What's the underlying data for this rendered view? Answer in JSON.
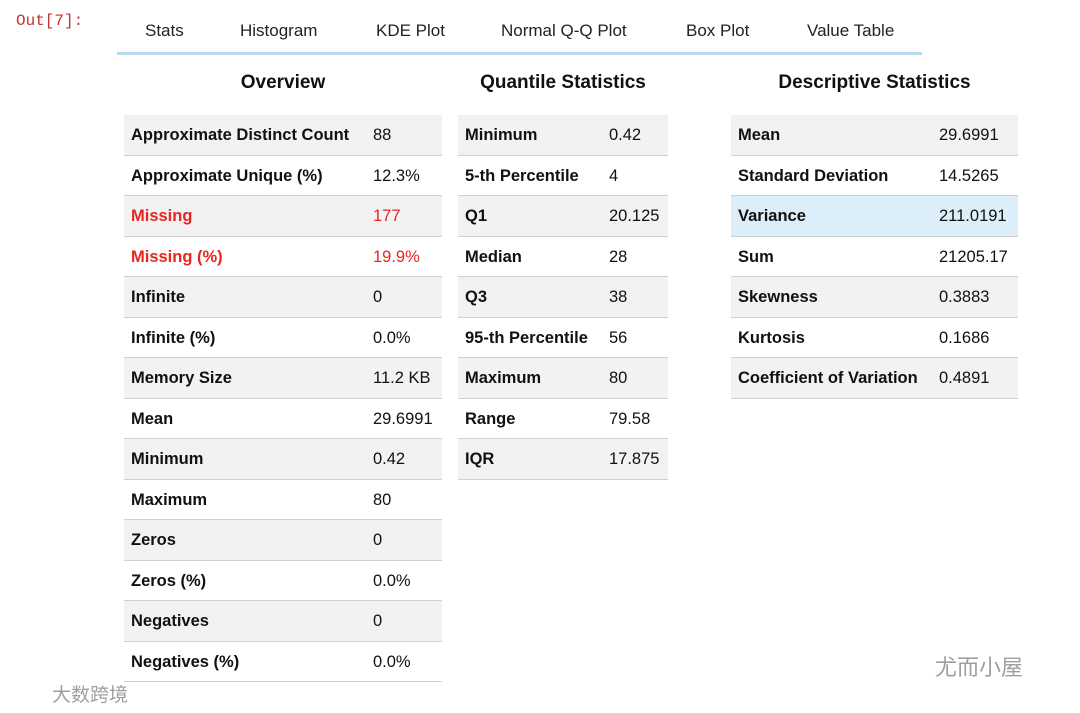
{
  "prompt": "Out[7]:",
  "tabs": [
    "Stats",
    "Histogram",
    "KDE Plot",
    "Normal Q-Q Plot",
    "Box Plot",
    "Value Table"
  ],
  "tables": [
    {
      "title": "Overview",
      "rows": [
        [
          "Approximate Distinct Count",
          "88"
        ],
        [
          "Approximate Unique (%)",
          "12.3%"
        ],
        [
          "Missing",
          "177"
        ],
        [
          "Missing (%)",
          "19.9%"
        ],
        [
          "Infinite",
          "0"
        ],
        [
          "Infinite (%)",
          "0.0%"
        ],
        [
          "Memory Size",
          "11.2 KB"
        ],
        [
          "Mean",
          "29.6991"
        ],
        [
          "Minimum",
          "0.42"
        ],
        [
          "Maximum",
          "80"
        ],
        [
          "Zeros",
          "0"
        ],
        [
          "Zeros (%)",
          "0.0%"
        ],
        [
          "Negatives",
          "0"
        ],
        [
          "Negatives (%)",
          "0.0%"
        ]
      ]
    },
    {
      "title": "Quantile Statistics",
      "rows": [
        [
          "Minimum",
          "0.42"
        ],
        [
          "5-th Percentile",
          "4"
        ],
        [
          "Q1",
          "20.125"
        ],
        [
          "Median",
          "28"
        ],
        [
          "Q3",
          "38"
        ],
        [
          "95-th Percentile",
          "56"
        ],
        [
          "Maximum",
          "80"
        ],
        [
          "Range",
          "79.58"
        ],
        [
          "IQR",
          "17.875"
        ]
      ]
    },
    {
      "title": "Descriptive Statistics",
      "rows": [
        [
          "Mean",
          "29.6991"
        ],
        [
          "Standard Deviation",
          "14.5265"
        ],
        [
          "Variance",
          "211.0191"
        ],
        [
          "Sum",
          "21205.17"
        ],
        [
          "Skewness",
          "0.3883"
        ],
        [
          "Kurtosis",
          "0.1686"
        ],
        [
          "Coefficient of Variation",
          "0.4891"
        ]
      ]
    }
  ],
  "watermarks": [
    "尤而小屋",
    "大数跨境"
  ]
}
